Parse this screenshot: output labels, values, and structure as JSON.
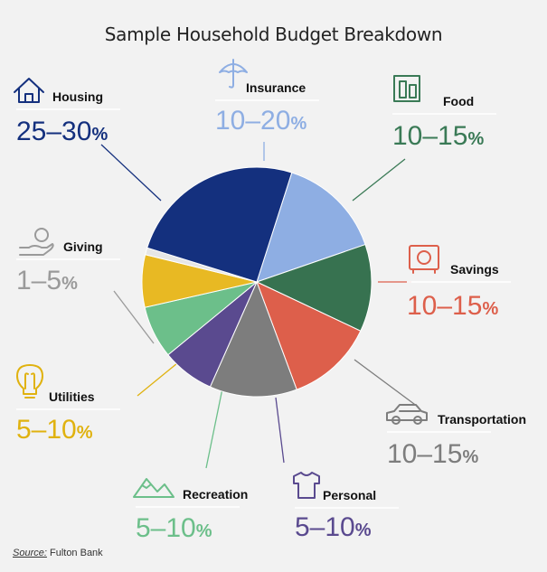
{
  "title": "Sample Household Budget Breakdown",
  "source": {
    "label": "Source:",
    "text": " Fulton Bank"
  },
  "chart_data": {
    "type": "pie",
    "title": "Sample Household Budget Breakdown",
    "slices": [
      {
        "name": "Insurance",
        "range": "10–20",
        "unit": "%",
        "value": 15,
        "color": "#8eaee3",
        "text_color": "#8eaee3",
        "icon": "umbrella-icon"
      },
      {
        "name": "Food",
        "range": "10–15",
        "unit": "%",
        "value": 12.5,
        "color": "#377250",
        "text_color": "#3a7a56",
        "icon": "grocery-icon"
      },
      {
        "name": "Savings",
        "range": "10–15",
        "unit": "%",
        "value": 12.5,
        "color": "#dd5f4b",
        "text_color": "#dd5f4b",
        "icon": "safe-icon"
      },
      {
        "name": "Transportation",
        "range": "10–15",
        "unit": "%",
        "value": 12.5,
        "color": "#7d7d7d",
        "text_color": "#7d7d7d",
        "icon": "car-icon"
      },
      {
        "name": "Personal",
        "range": "5–10",
        "unit": "%",
        "value": 7.5,
        "color": "#5a4a8f",
        "text_color": "#5a4a8f",
        "icon": "shirt-icon"
      },
      {
        "name": "Recreation",
        "range": "5–10",
        "unit": "%",
        "value": 7.5,
        "color": "#6cbf8a",
        "text_color": "#6cbf8a",
        "icon": "mountain-icon"
      },
      {
        "name": "Utilities",
        "range": "5–10",
        "unit": "%",
        "value": 7.5,
        "color": "#e8b923",
        "text_color": "#e0b20f",
        "icon": "lightbulb-icon"
      },
      {
        "name": "Giving",
        "range": "1–5",
        "unit": "%",
        "value": 1,
        "color": "#e6e6e6",
        "text_color": "#9a9a9a",
        "icon": "giving-hand-icon"
      },
      {
        "name": "Housing",
        "range": "25–30",
        "unit": "%",
        "value": 25.5,
        "color": "#14307e",
        "text_color": "#14307e",
        "icon": "house-icon"
      }
    ]
  }
}
